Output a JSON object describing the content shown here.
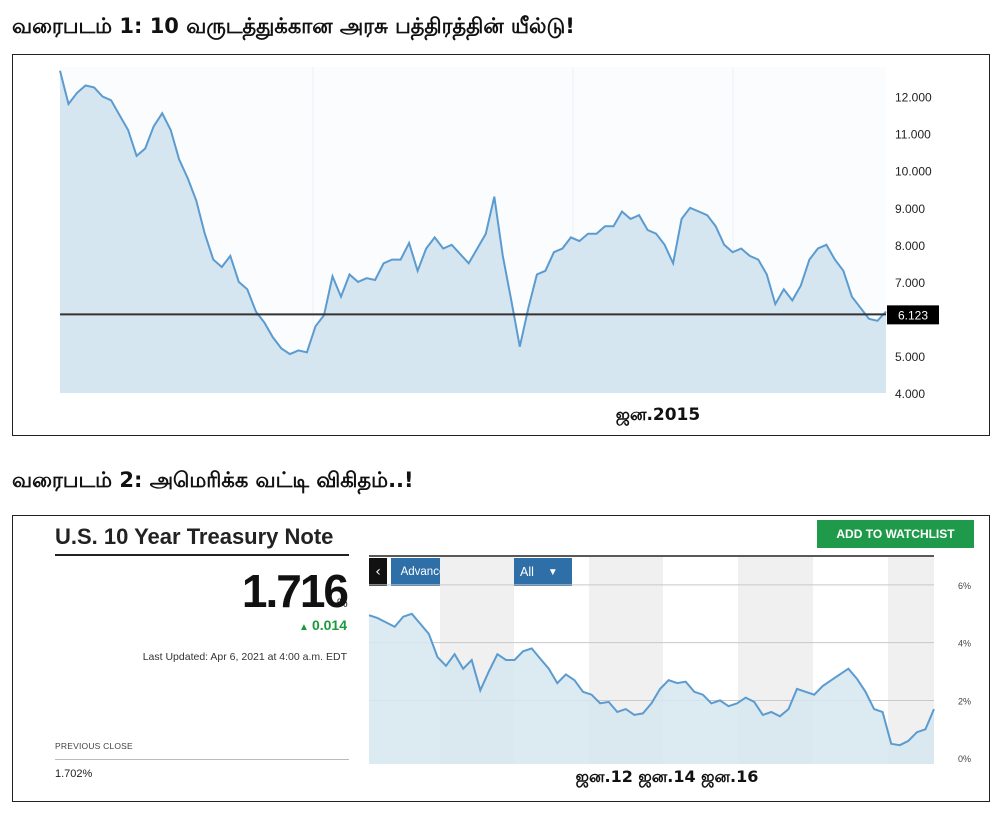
{
  "chart1": {
    "heading": "வரைபடம் 1: 10 வருடத்துக்கான அரசு பத்திரத்தின் யீல்டு!",
    "x_label": "ஜன.2015",
    "current_value_label": "6.123"
  },
  "chart2": {
    "heading": "வரைபடம் 2: அமெரிக்க வட்டி விகிதம்..!",
    "title": "U.S. 10 Year Treasury Note",
    "price": "1.716",
    "price_unit": "%",
    "change": "0.014",
    "last_updated": "Last Updated: Apr 6, 2021 at 4:00 a.m. EDT",
    "previous_close_label": "PREVIOUS CLOSE",
    "previous_close_value": "1.702%",
    "watchlist_button": "ADD TO WATCHLIST",
    "advanced_charting_button": "Advanced Charting",
    "range_select": "All",
    "x_label": "ஜன.12 ஜன.14 ஜன.16"
  },
  "colors": {
    "line": "#5b9bd0",
    "fill": "#d6e6f0",
    "button_green": "#1f9a4a",
    "button_blue": "#2f6fa8",
    "change_green": "#1a9a3a"
  },
  "icons": [
    "back-arrow-icon",
    "dropdown-caret-icon",
    "up-triangle-icon"
  ],
  "chart_data": [
    {
      "type": "area",
      "ylim": [
        4.0,
        12.8
      ],
      "yticks": [
        "12.000",
        "11.000",
        "10.000",
        "9.000",
        "8.000",
        "7.000",
        "6.000",
        "5.000",
        "4.000"
      ],
      "ytick_values": [
        12,
        11,
        10,
        9,
        8,
        7,
        6,
        5,
        4
      ],
      "reference_line": 6.123,
      "grid": false,
      "values": [
        12.7,
        11.8,
        12.1,
        12.3,
        12.25,
        12.0,
        11.9,
        11.5,
        11.1,
        10.4,
        10.6,
        11.2,
        11.55,
        11.1,
        10.3,
        9.8,
        9.2,
        8.3,
        7.6,
        7.4,
        7.7,
        7.0,
        6.8,
        6.2,
        5.9,
        5.5,
        5.2,
        5.05,
        5.15,
        5.1,
        5.8,
        6.1,
        7.15,
        6.6,
        7.2,
        7.0,
        7.1,
        7.05,
        7.5,
        7.6,
        7.6,
        8.05,
        7.3,
        7.9,
        8.2,
        7.9,
        8.0,
        7.75,
        7.5,
        7.9,
        8.3,
        9.3,
        7.7,
        6.5,
        5.25,
        6.3,
        7.2,
        7.3,
        7.8,
        7.9,
        8.2,
        8.1,
        8.3,
        8.3,
        8.5,
        8.5,
        8.9,
        8.7,
        8.8,
        8.4,
        8.3,
        8.0,
        7.5,
        8.7,
        9.0,
        8.9,
        8.8,
        8.5,
        8.0,
        7.8,
        7.9,
        7.7,
        7.6,
        7.2,
        6.4,
        6.8,
        6.5,
        6.9,
        7.6,
        7.9,
        8.0,
        7.6,
        7.3,
        6.6,
        6.3,
        6.0,
        5.95,
        6.2
      ]
    },
    {
      "type": "area",
      "ylim": [
        -0.2,
        7.0
      ],
      "yticks": [
        "6%",
        "4%",
        "2%",
        "0%"
      ],
      "ytick_values": [
        6,
        4,
        2,
        0
      ],
      "grid": true,
      "values": [
        4.95,
        4.85,
        4.7,
        4.55,
        4.9,
        5.0,
        4.65,
        4.3,
        3.5,
        3.2,
        3.6,
        3.1,
        3.4,
        2.35,
        3.0,
        3.6,
        3.4,
        3.4,
        3.7,
        3.8,
        3.45,
        3.1,
        2.6,
        2.9,
        2.7,
        2.3,
        2.2,
        1.9,
        1.95,
        1.6,
        1.7,
        1.5,
        1.55,
        1.9,
        2.4,
        2.7,
        2.6,
        2.65,
        2.3,
        2.2,
        1.9,
        2.0,
        1.8,
        1.9,
        2.1,
        1.95,
        1.5,
        1.6,
        1.45,
        1.7,
        2.4,
        2.3,
        2.2,
        2.5,
        2.7,
        2.9,
        3.1,
        2.75,
        2.3,
        1.7,
        1.6,
        0.5,
        0.45,
        0.6,
        0.9,
        1.0,
        1.7
      ]
    }
  ]
}
